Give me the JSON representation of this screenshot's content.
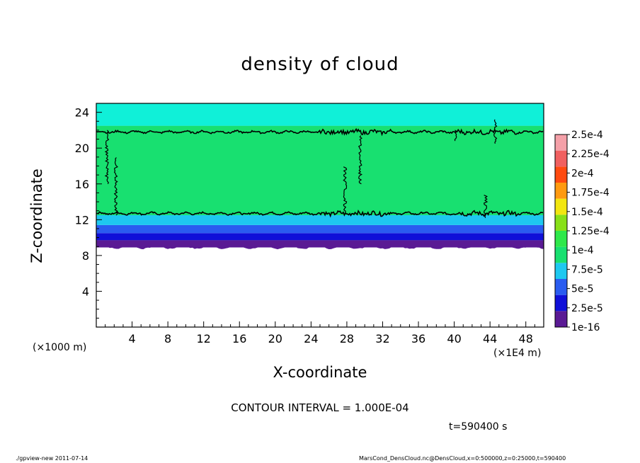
{
  "chart_data": {
    "type": "heatmap",
    "title": "density of cloud",
    "xlabel": "X-coordinate",
    "ylabel": "Z-coordinate",
    "x_unit_left": "(×1000 m)",
    "x_unit_right": "(×1E4 m)",
    "xlim": [
      0,
      50
    ],
    "ylim": [
      0,
      25
    ],
    "x_ticks": [
      4,
      8,
      12,
      16,
      20,
      24,
      28,
      32,
      36,
      40,
      44,
      48
    ],
    "y_ticks": [
      4,
      8,
      12,
      16,
      20,
      24
    ],
    "colorbar": {
      "labels": [
        "1e-16",
        "2.5e-5",
        "5e-5",
        "7.5e-5",
        "1e-4",
        "1.25e-4",
        "1.5e-4",
        "1.75e-4",
        "2e-4",
        "2.25e-4",
        "2.5e-4"
      ],
      "colors": [
        "#5a1a94",
        "#1010d8",
        "#2a5cf0",
        "#1ec8f0",
        "#18e070",
        "#2ee84a",
        "#88e018",
        "#f2e610",
        "#ff9a10",
        "#ff4a10",
        "#f06060",
        "#f4a0a8"
      ]
    },
    "layers": [
      {
        "z_range": [
          8.9,
          9.7
        ],
        "value": "1e-16"
      },
      {
        "z_range": [
          9.7,
          10.5
        ],
        "value": "2.5e-5"
      },
      {
        "z_range": [
          10.5,
          11.4
        ],
        "value": "5e-5"
      },
      {
        "z_range": [
          11.4,
          12.5
        ],
        "value": "7.5e-5"
      },
      {
        "z_range": [
          12.5,
          22.5
        ],
        "value": "1e-4"
      },
      {
        "z_range": [
          22.5,
          25
        ],
        "value": "7.5e-5"
      }
    ],
    "contour_levels_z": [
      12.7,
      21.8
    ],
    "contour_interval": "CONTOUR INTERVAL = 1.000E-04",
    "time": "t=590400 s"
  },
  "footer": {
    "left": "./gpview-new   2011-07-14",
    "right": "MarsCond_DensCloud.nc@DensCloud,x=0:500000,z=0:25000,t=590400"
  },
  "colors": {
    "background": "#ffffff",
    "axis": "#000000",
    "contour": "#000000"
  }
}
